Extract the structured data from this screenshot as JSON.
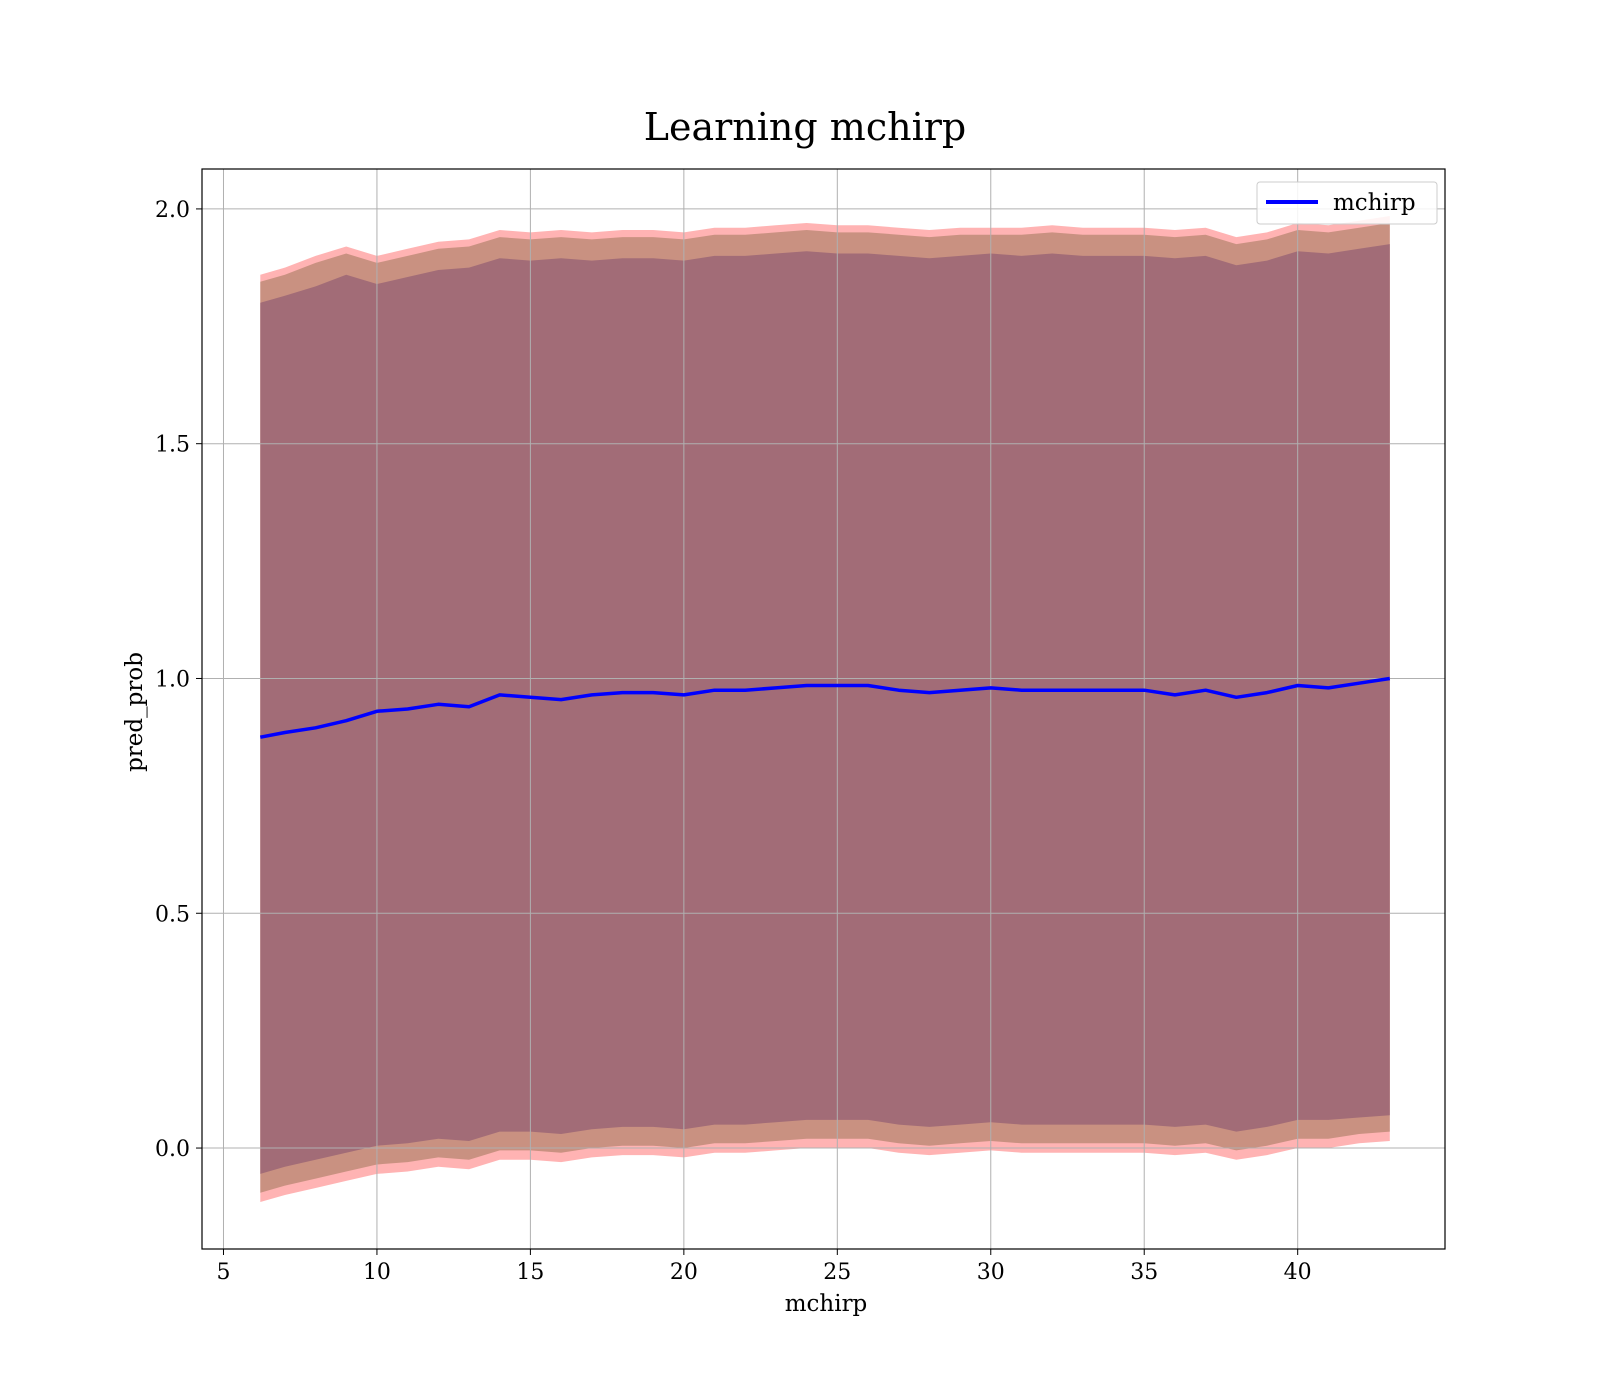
{
  "chart_data": {
    "type": "line",
    "title": "Learning mchirp",
    "xlabel": "mchirp",
    "ylabel": "pred_prob",
    "xlim": [
      4.3,
      44.8
    ],
    "ylim": [
      -0.215,
      2.085
    ],
    "x_ticks": [
      5,
      10,
      15,
      20,
      25,
      30,
      35,
      40
    ],
    "y_ticks": [
      0.0,
      0.5,
      1.0,
      1.5,
      2.0
    ],
    "x_tick_labels": [
      "5",
      "10",
      "15",
      "20",
      "25",
      "30",
      "35",
      "40"
    ],
    "y_tick_labels": [
      "0.0",
      "0.5",
      "1.0",
      "1.5",
      "2.0"
    ],
    "grid": true,
    "legend": {
      "position": "top-right",
      "entries": [
        "mchirp"
      ]
    },
    "x": [
      6.2,
      7.0,
      8.0,
      9.0,
      10.0,
      11.0,
      12.0,
      13.0,
      14.0,
      15.0,
      16.0,
      17.0,
      18.0,
      19.0,
      20.0,
      21.0,
      22.0,
      23.0,
      24.0,
      25.0,
      26.0,
      27.0,
      28.0,
      29.0,
      30.0,
      31.0,
      32.0,
      33.0,
      34.0,
      35.0,
      36.0,
      37.0,
      38.0,
      39.0,
      40.0,
      41.0,
      42.0,
      43.0
    ],
    "series": [
      {
        "name": "mchirp",
        "color": "#0000ff",
        "values": [
          0.875,
          0.885,
          0.895,
          0.91,
          0.93,
          0.935,
          0.945,
          0.94,
          0.965,
          0.96,
          0.955,
          0.965,
          0.97,
          0.97,
          0.965,
          0.975,
          0.975,
          0.98,
          0.985,
          0.985,
          0.985,
          0.975,
          0.97,
          0.975,
          0.98,
          0.975,
          0.975,
          0.975,
          0.975,
          0.975,
          0.965,
          0.975,
          0.96,
          0.97,
          0.985,
          0.98,
          0.99,
          1.0
        ]
      }
    ],
    "bands": [
      {
        "color": "#ff9999",
        "opacity": 0.75,
        "upper": [
          1.86,
          1.875,
          1.9,
          1.92,
          1.9,
          1.915,
          1.93,
          1.935,
          1.955,
          1.95,
          1.955,
          1.95,
          1.955,
          1.955,
          1.95,
          1.96,
          1.96,
          1.965,
          1.97,
          1.965,
          1.965,
          1.96,
          1.955,
          1.96,
          1.96,
          1.96,
          1.965,
          1.96,
          1.96,
          1.96,
          1.955,
          1.96,
          1.94,
          1.95,
          1.97,
          1.965,
          1.975,
          1.985
        ],
        "lower": [
          -0.115,
          -0.1,
          -0.085,
          -0.07,
          -0.055,
          -0.05,
          -0.04,
          -0.045,
          -0.025,
          -0.025,
          -0.03,
          -0.02,
          -0.015,
          -0.015,
          -0.02,
          -0.01,
          -0.01,
          -0.005,
          0.0,
          0.0,
          0.0,
          -0.01,
          -0.015,
          -0.01,
          -0.005,
          -0.01,
          -0.01,
          -0.01,
          -0.01,
          -0.01,
          -0.015,
          -0.01,
          -0.025,
          -0.015,
          0.0,
          0.0,
          0.01,
          0.015
        ]
      },
      {
        "color": "#a5795f",
        "opacity": 0.6,
        "upper": [
          1.845,
          1.86,
          1.885,
          1.905,
          1.885,
          1.9,
          1.915,
          1.92,
          1.94,
          1.935,
          1.94,
          1.935,
          1.94,
          1.94,
          1.935,
          1.945,
          1.945,
          1.95,
          1.955,
          1.95,
          1.95,
          1.945,
          1.94,
          1.945,
          1.945,
          1.945,
          1.95,
          1.945,
          1.945,
          1.945,
          1.94,
          1.945,
          1.925,
          1.935,
          1.955,
          1.95,
          1.96,
          1.97
        ],
        "lower": [
          -0.095,
          -0.08,
          -0.065,
          -0.05,
          -0.035,
          -0.03,
          -0.02,
          -0.025,
          -0.005,
          -0.005,
          -0.01,
          0.0,
          0.005,
          0.005,
          0.0,
          0.01,
          0.01,
          0.015,
          0.02,
          0.02,
          0.02,
          0.01,
          0.005,
          0.01,
          0.015,
          0.01,
          0.01,
          0.01,
          0.01,
          0.01,
          0.005,
          0.01,
          -0.005,
          0.005,
          0.02,
          0.02,
          0.03,
          0.035
        ]
      },
      {
        "color": "#9b6575",
        "opacity": 0.85,
        "upper": [
          1.8,
          1.815,
          1.835,
          1.86,
          1.84,
          1.855,
          1.87,
          1.875,
          1.895,
          1.89,
          1.895,
          1.89,
          1.895,
          1.895,
          1.89,
          1.9,
          1.9,
          1.905,
          1.91,
          1.905,
          1.905,
          1.9,
          1.895,
          1.9,
          1.905,
          1.9,
          1.905,
          1.9,
          1.9,
          1.9,
          1.895,
          1.9,
          1.88,
          1.89,
          1.91,
          1.905,
          1.915,
          1.925
        ],
        "lower": [
          -0.055,
          -0.04,
          -0.025,
          -0.01,
          0.005,
          0.01,
          0.02,
          0.015,
          0.035,
          0.035,
          0.03,
          0.04,
          0.045,
          0.045,
          0.04,
          0.05,
          0.05,
          0.055,
          0.06,
          0.06,
          0.06,
          0.05,
          0.045,
          0.05,
          0.055,
          0.05,
          0.05,
          0.05,
          0.05,
          0.05,
          0.045,
          0.05,
          0.035,
          0.045,
          0.06,
          0.06,
          0.065,
          0.07
        ]
      }
    ]
  }
}
